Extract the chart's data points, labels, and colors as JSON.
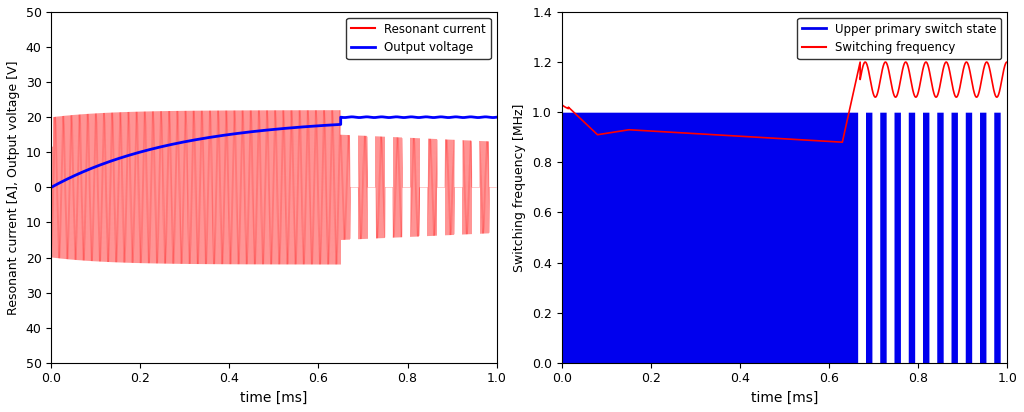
{
  "fig_width": 10.24,
  "fig_height": 4.12,
  "dpi": 100,
  "left_plot": {
    "xlabel": "time [ms]",
    "ylabel": "Resonant current [A], Output voltage [V]",
    "xlim": [
      0,
      1
    ],
    "ylim": [
      50,
      -50
    ],
    "yticks": [
      50,
      40,
      30,
      20,
      10,
      0,
      -10,
      -20,
      -30,
      -40,
      -50
    ],
    "yticklabels": [
      "50",
      "40",
      "30",
      "20",
      "10",
      "0",
      "10",
      "20",
      "30",
      "40",
      "50"
    ],
    "xticks": [
      0,
      0.2,
      0.4,
      0.6,
      0.8,
      1.0
    ],
    "legend_entries": [
      "Resonant current",
      "Output voltage"
    ],
    "resonant_color": "#FF0000",
    "voltage_color": "#0000FF",
    "bg_color": "#FFFFFF"
  },
  "right_plot": {
    "xlabel": "time [ms]",
    "ylabel": "Switching frequency [MHz]",
    "xlim": [
      0,
      1
    ],
    "ylim": [
      0,
      1.4
    ],
    "yticks": [
      0,
      0.2,
      0.4,
      0.6,
      0.8,
      1.0,
      1.2,
      1.4
    ],
    "xticks": [
      0,
      0.2,
      0.4,
      0.6,
      0.8,
      1.0
    ],
    "legend_entries": [
      "Upper primary switch state",
      "Switching frequency"
    ],
    "switch_color": "#0000EE",
    "freq_color": "#FF0000",
    "bg_color": "#FFFFFF"
  }
}
